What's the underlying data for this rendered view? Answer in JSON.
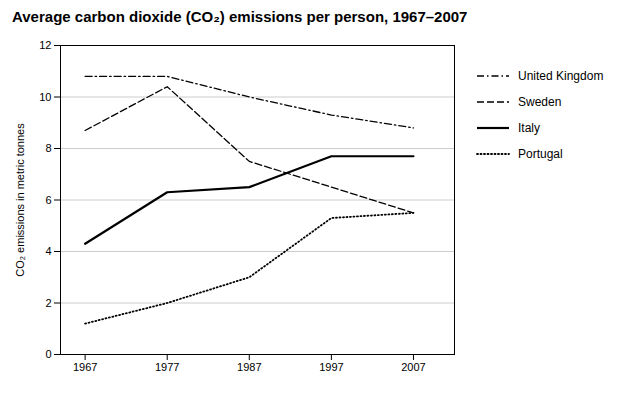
{
  "chart_data": {
    "type": "line",
    "title": "Average carbon dioxide (CO₂) emissions per person, 1967–2007",
    "ylabel": "CO₂ emissions in metric tonnes",
    "x": [
      1967,
      1977,
      1987,
      1997,
      2007
    ],
    "series": [
      {
        "name": "United Kingdom",
        "color": "black",
        "line_style": "dashdot",
        "values": [
          10.8,
          10.8,
          10.0,
          9.3,
          8.8
        ]
      },
      {
        "name": "Sweden",
        "color": "black",
        "line_style": "dashed",
        "values": [
          8.7,
          10.4,
          7.5,
          6.5,
          5.5
        ]
      },
      {
        "name": "Italy",
        "color": "black",
        "line_style": "solid",
        "values": [
          4.3,
          6.3,
          6.5,
          7.7,
          7.7
        ]
      },
      {
        "name": "Portugal",
        "color": "black",
        "line_style": "dotted",
        "values": [
          1.2,
          2.0,
          3.0,
          5.3,
          5.5
        ]
      }
    ],
    "xlim": [
      1964,
      2012
    ],
    "xticks": [
      1967,
      1977,
      1987,
      1997,
      2007
    ],
    "ylim": [
      0,
      12
    ],
    "yticks": [
      0,
      2,
      4,
      6,
      8,
      10,
      12
    ],
    "grid": true,
    "legend": "right"
  }
}
